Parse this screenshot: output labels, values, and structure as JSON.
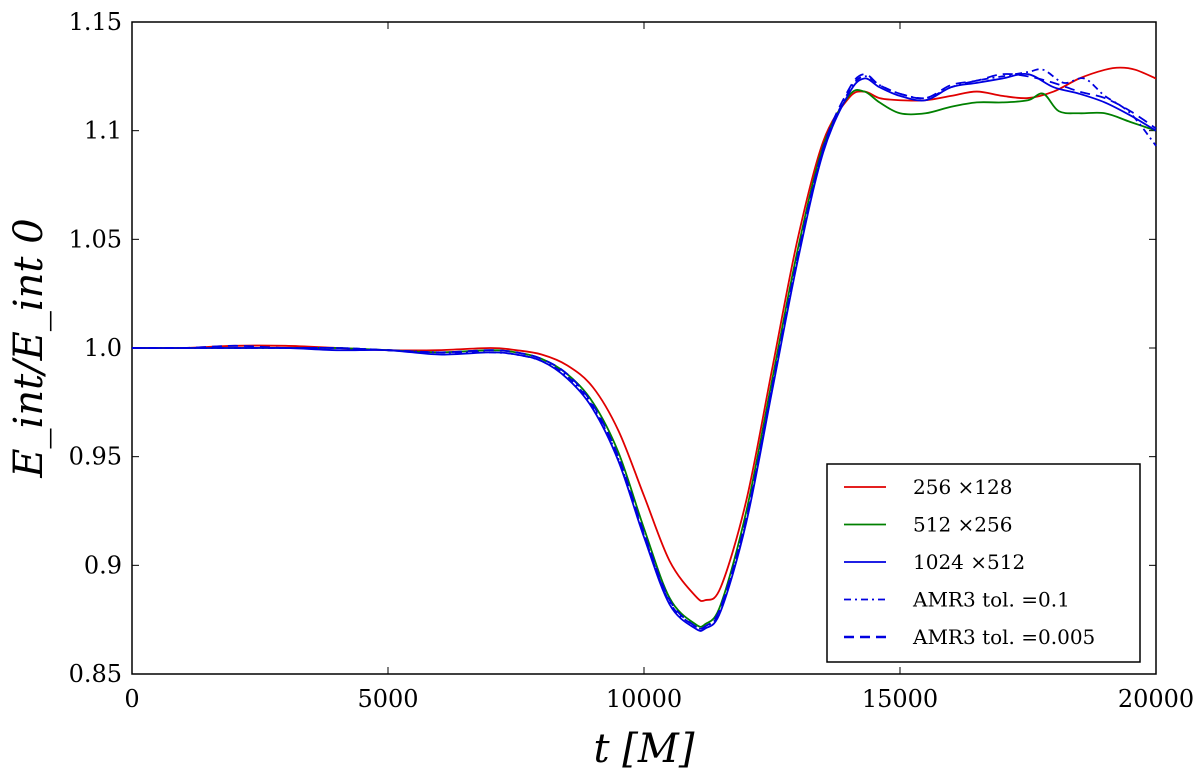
{
  "chart_data": {
    "type": "line",
    "xlabel": "t  [M]",
    "ylabel": "E_int/E_int 0",
    "xlim": [
      0,
      20000
    ],
    "ylim": [
      0.85,
      1.15
    ],
    "x_ticks": [
      "0",
      "5000",
      "10000",
      "15000",
      "20000"
    ],
    "y_ticks": [
      "0.85",
      "0.9",
      "0.95",
      "1.0",
      "1.05",
      "1.1",
      "1.15"
    ],
    "grid": false,
    "legend_position": "lower-right",
    "series": [
      {
        "name": "256 ×128",
        "color": "#e00000",
        "style": "solid",
        "x": [
          0,
          1000,
          2000,
          3000,
          4000,
          5000,
          6000,
          7000,
          7500,
          8000,
          8500,
          9000,
          9500,
          10000,
          10500,
          11000,
          11200,
          11500,
          12000,
          12500,
          13000,
          13500,
          14000,
          14300,
          14600,
          15000,
          15500,
          16000,
          16500,
          17000,
          17500,
          18000,
          18500,
          19000,
          19300,
          19600,
          20000
        ],
        "y": [
          1.0,
          1.0,
          1.001,
          1.001,
          1.0,
          0.999,
          0.999,
          1.0,
          0.999,
          0.997,
          0.992,
          0.982,
          0.962,
          0.932,
          0.902,
          0.886,
          0.884,
          0.89,
          0.93,
          0.99,
          1.05,
          1.095,
          1.115,
          1.118,
          1.115,
          1.114,
          1.114,
          1.116,
          1.118,
          1.116,
          1.115,
          1.118,
          1.124,
          1.128,
          1.129,
          1.128,
          1.124
        ]
      },
      {
        "name": "512 ×256",
        "color": "#008000",
        "style": "solid",
        "x": [
          0,
          1000,
          2000,
          3000,
          4000,
          5000,
          6000,
          7000,
          7500,
          8000,
          8500,
          9000,
          9500,
          10000,
          10500,
          11000,
          11200,
          11500,
          12000,
          12500,
          13000,
          13500,
          14000,
          14300,
          14600,
          15000,
          15500,
          16000,
          16500,
          17000,
          17500,
          17800,
          18100,
          18500,
          19000,
          19500,
          20000
        ],
        "y": [
          1.0,
          1.0,
          1.0,
          1.0,
          1.0,
          0.999,
          0.998,
          0.999,
          0.998,
          0.995,
          0.988,
          0.975,
          0.952,
          0.917,
          0.885,
          0.873,
          0.873,
          0.882,
          0.925,
          0.985,
          1.045,
          1.093,
          1.116,
          1.118,
          1.113,
          1.108,
          1.108,
          1.111,
          1.113,
          1.113,
          1.114,
          1.117,
          1.109,
          1.108,
          1.108,
          1.104,
          1.1
        ]
      },
      {
        "name": "1024 ×512",
        "color": "#0000e0",
        "style": "solid",
        "x": [
          0,
          1000,
          2000,
          3000,
          4000,
          5000,
          6000,
          7000,
          7500,
          8000,
          8500,
          9000,
          9500,
          10000,
          10500,
          11000,
          11200,
          11500,
          12000,
          12500,
          13000,
          13500,
          14000,
          14300,
          14600,
          15000,
          15500,
          16000,
          16500,
          17000,
          17500,
          18000,
          18500,
          19000,
          19500,
          20000
        ],
        "y": [
          1.0,
          1.0,
          1.0,
          1.0,
          0.999,
          0.999,
          0.997,
          0.998,
          0.997,
          0.994,
          0.986,
          0.972,
          0.948,
          0.913,
          0.882,
          0.871,
          0.871,
          0.879,
          0.92,
          0.98,
          1.04,
          1.09,
          1.117,
          1.124,
          1.12,
          1.116,
          1.114,
          1.12,
          1.122,
          1.124,
          1.126,
          1.12,
          1.117,
          1.113,
          1.107,
          1.1
        ]
      },
      {
        "name": "AMR3   tol. =0.1",
        "color": "#0000e0",
        "style": "dashdot",
        "x": [
          0,
          1000,
          2000,
          3000,
          4000,
          5000,
          6000,
          7000,
          7500,
          8000,
          8500,
          9000,
          9500,
          10000,
          10500,
          11000,
          11200,
          11500,
          12000,
          12500,
          13000,
          13500,
          14000,
          14300,
          14600,
          15000,
          15500,
          16000,
          16500,
          17000,
          17500,
          17800,
          18200,
          18600,
          19000,
          19500,
          20000
        ],
        "y": [
          1.0,
          1.0,
          1.0,
          1.0,
          1.0,
          0.999,
          0.998,
          0.998,
          0.997,
          0.994,
          0.987,
          0.973,
          0.949,
          0.914,
          0.883,
          0.872,
          0.872,
          0.88,
          0.921,
          0.981,
          1.041,
          1.091,
          1.118,
          1.125,
          1.121,
          1.117,
          1.115,
          1.12,
          1.123,
          1.125,
          1.127,
          1.128,
          1.122,
          1.124,
          1.116,
          1.108,
          1.093
        ]
      },
      {
        "name": "AMR3   tol. =0.005",
        "color": "#0000e0",
        "style": "dashed",
        "x": [
          0,
          1000,
          2000,
          3000,
          4000,
          5000,
          6000,
          7000,
          7500,
          8000,
          8500,
          9000,
          9500,
          10000,
          10500,
          11000,
          11200,
          11500,
          12000,
          12500,
          13000,
          13500,
          14000,
          14300,
          14600,
          15000,
          15500,
          16000,
          16500,
          17000,
          17500,
          18000,
          18500,
          19000,
          19500,
          20000
        ],
        "y": [
          1.0,
          1.0,
          1.001,
          1.0,
          1.0,
          0.999,
          0.998,
          0.999,
          0.998,
          0.995,
          0.988,
          0.974,
          0.95,
          0.915,
          0.884,
          0.872,
          0.872,
          0.881,
          0.922,
          0.982,
          1.042,
          1.092,
          1.119,
          1.126,
          1.121,
          1.117,
          1.115,
          1.121,
          1.123,
          1.126,
          1.125,
          1.122,
          1.118,
          1.115,
          1.109,
          1.101
        ]
      }
    ]
  }
}
